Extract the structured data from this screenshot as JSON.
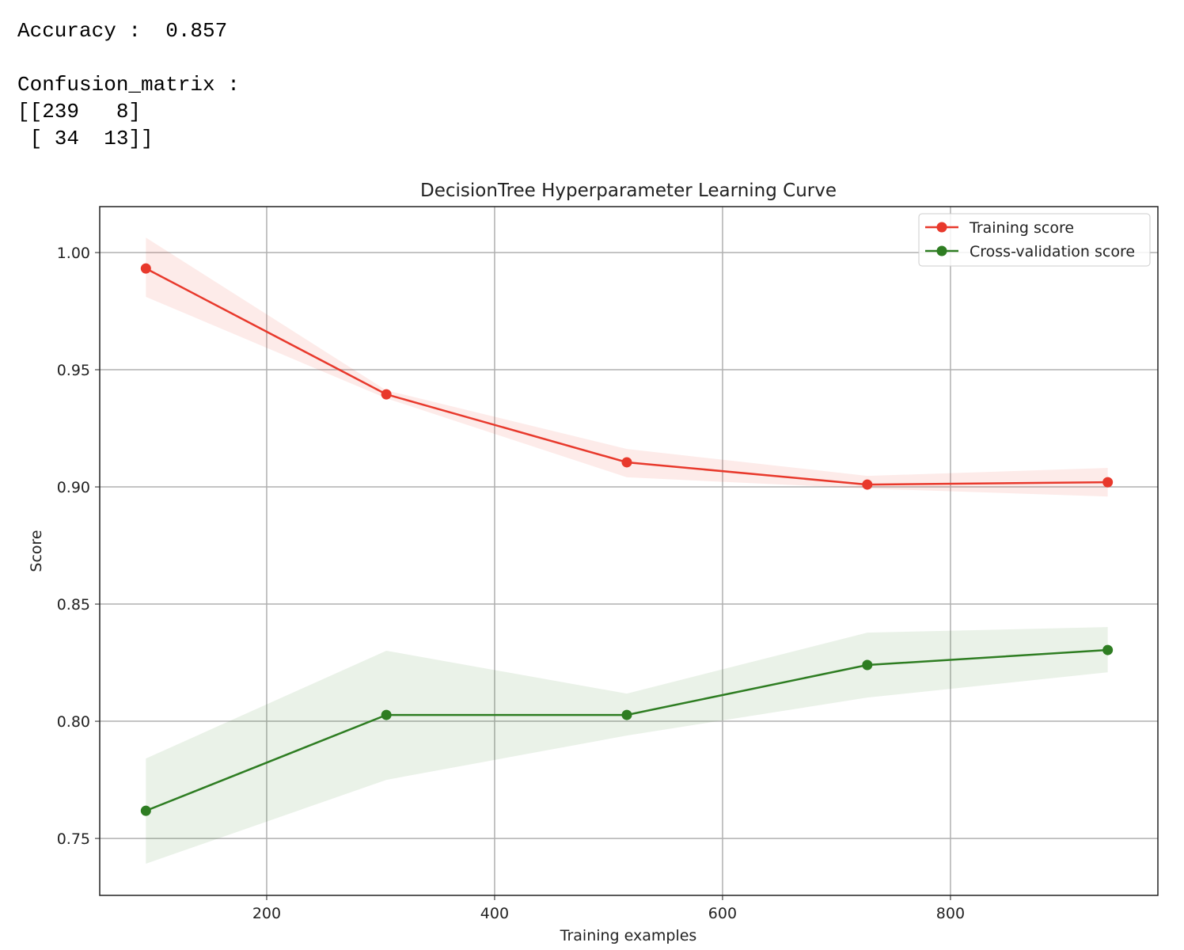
{
  "output": {
    "accuracy": "Accuracy :  0.857",
    "matrix_label": "Confusion_matrix :",
    "matrix_rows": [
      "[[239   8]",
      " [ 34  13]]"
    ]
  },
  "chart_data": {
    "type": "line",
    "title": "DecisionTree Hyperparameter Learning Curve",
    "x_label": "Training examples",
    "y_label": "Score",
    "x": [
      94,
      305,
      516,
      727,
      938
    ],
    "series": [
      {
        "name": "Training score",
        "color": "#e8392c",
        "values": [
          0.9932,
          0.9395,
          0.9105,
          0.901,
          0.902
        ],
        "upper": [
          1.0064,
          0.9412,
          0.9162,
          0.9047,
          0.9081
        ],
        "lower": [
          0.9811,
          0.9378,
          0.9041,
          0.8993,
          0.8959
        ]
      },
      {
        "name": "Cross-validation score",
        "color": "#2e7d22",
        "values": [
          0.7618,
          0.8027,
          0.8027,
          0.824,
          0.8304
        ],
        "upper": [
          0.7841,
          0.8301,
          0.8118,
          0.8378,
          0.8402
        ],
        "lower": [
          0.7392,
          0.775,
          0.7939,
          0.8101,
          0.8209
        ]
      }
    ],
    "xlim": [
      53.5,
      982
    ],
    "ylim": [
      0.7257,
      1.0196
    ],
    "xticks": [
      200,
      400,
      600,
      800
    ],
    "yticks": [
      {
        "value": 0.75,
        "label": "0.75"
      },
      {
        "value": 0.8,
        "label": "0.80"
      },
      {
        "value": 0.85,
        "label": "0.85"
      },
      {
        "value": 0.9,
        "label": "0.90"
      },
      {
        "value": 0.95,
        "label": "0.95"
      },
      {
        "value": 1.0,
        "label": "1.00"
      }
    ],
    "grid": true,
    "legend": "upper right",
    "band_opacity": 0.1
  }
}
